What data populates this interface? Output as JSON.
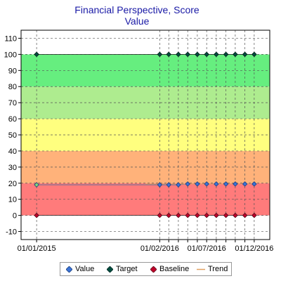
{
  "chart_data": {
    "type": "line",
    "title": "Financial Perspective, Score",
    "subtitle": "Value",
    "ylim": [
      -15,
      115
    ],
    "yticks": [
      -10,
      0,
      10,
      20,
      30,
      40,
      50,
      60,
      70,
      80,
      90,
      100,
      110
    ],
    "xlim": [
      "2014-11-12",
      "2017-01-20"
    ],
    "xticks": [
      {
        "date": "2015-01-01",
        "label": "01/01/2015"
      },
      {
        "date": "2016-02-01",
        "label": "01/02/2016"
      },
      {
        "date": "2016-07-01",
        "label": "01/07/2016"
      },
      {
        "date": "2016-12-01",
        "label": "01/12/2016"
      }
    ],
    "grid": true,
    "bands": [
      {
        "from": -15,
        "to": 0,
        "color": "#ffffff"
      },
      {
        "from": 0,
        "to": 20,
        "color": "#ff7b7b"
      },
      {
        "from": 20,
        "to": 40,
        "color": "#ffb27a"
      },
      {
        "from": 40,
        "to": 60,
        "color": "#ffff7f"
      },
      {
        "from": 60,
        "to": 80,
        "color": "#aeec8f"
      },
      {
        "from": 80,
        "to": 100,
        "color": "#66ee7f"
      },
      {
        "from": 100,
        "to": 115,
        "color": "#ffffff"
      }
    ],
    "x": [
      "2015-01-01",
      "2016-02-01",
      "2016-03-01",
      "2016-04-01",
      "2016-05-01",
      "2016-06-01",
      "2016-07-01",
      "2016-08-01",
      "2016-09-01",
      "2016-10-01",
      "2016-11-01",
      "2016-12-01"
    ],
    "series": [
      {
        "name": "Value",
        "color": "#3b73d6",
        "values": [
          19,
          19,
          19,
          19,
          19.5,
          19.5,
          19.5,
          19.5,
          19.5,
          19.5,
          19.5,
          19.5
        ]
      },
      {
        "name": "Target",
        "color": "#004d40",
        "values": [
          100,
          100,
          100,
          100,
          100,
          100,
          100,
          100,
          100,
          100,
          100,
          100
        ]
      },
      {
        "name": "Baseline",
        "color": "#c0002a",
        "values": [
          0,
          0,
          0,
          0,
          0,
          0,
          0,
          0,
          0,
          0,
          0,
          0
        ]
      },
      {
        "name": "Trend",
        "color": "#e0a060",
        "values": [
          null,
          19.5,
          19.5,
          19.5,
          19.5,
          19.5,
          19.5,
          19.5,
          19.5,
          19.5,
          19.5,
          19.5
        ]
      }
    ],
    "legend_position": "bottom"
  }
}
